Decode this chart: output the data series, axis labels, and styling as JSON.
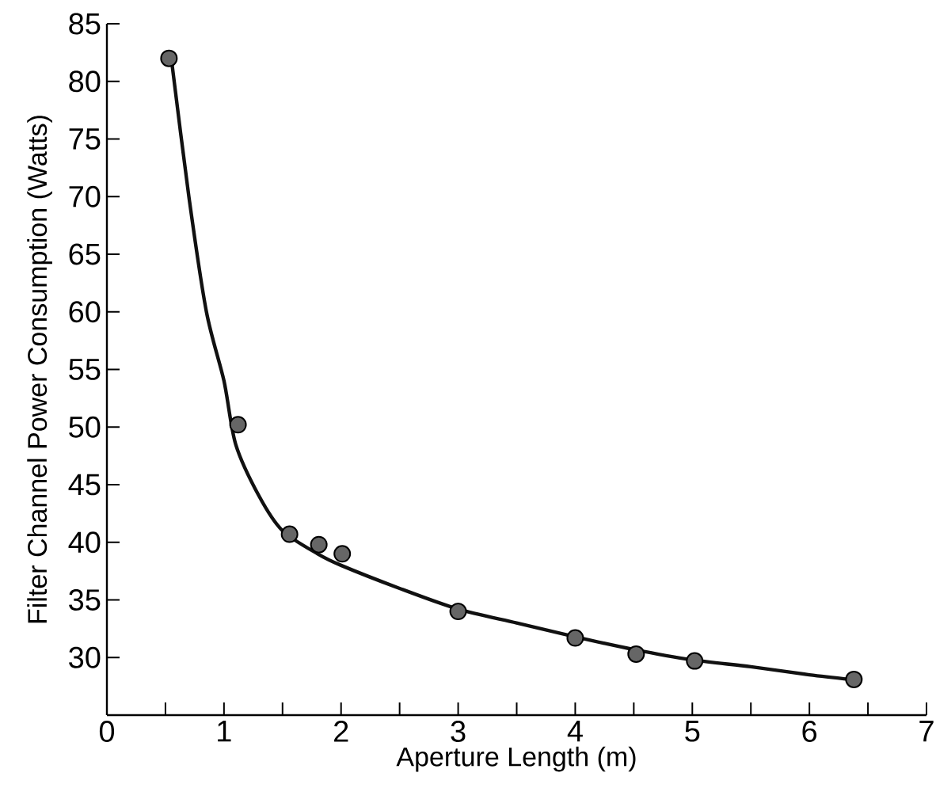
{
  "chart_data": {
    "type": "scatter",
    "xlabel": "Aperture Length (m)",
    "ylabel": "Filter Channel Power Consumption (Watts)",
    "xlim": [
      0,
      7
    ],
    "ylim": [
      25,
      85
    ],
    "xticks": [
      0,
      {
        "value": 0.5,
        "label": null
      },
      1,
      {
        "value": 1.5,
        "label": null
      },
      2,
      {
        "value": 2.5,
        "label": null
      },
      3,
      {
        "value": 3.5,
        "label": null
      },
      4,
      {
        "value": 4.5,
        "label": null
      },
      5,
      {
        "value": 5.5,
        "label": null
      },
      6,
      {
        "value": 6.5,
        "label": null
      },
      7
    ],
    "yticks": [
      30,
      35,
      40,
      45,
      50,
      55,
      60,
      65,
      70,
      75,
      80,
      85
    ],
    "grid": false,
    "series": [
      {
        "color": "#666666",
        "marker": "circle",
        "x": [
          0.53,
          1.12,
          1.56,
          1.81,
          2.01,
          3.0,
          4.0,
          4.52,
          5.02,
          6.38
        ],
        "values": [
          82.0,
          50.2,
          40.7,
          39.8,
          39.0,
          34.0,
          31.7,
          30.3,
          29.7,
          28.1
        ]
      },
      {
        "type": "line",
        "color": "#111111",
        "marker": "none",
        "line_style": "solid",
        "x": [
          0.55,
          0.7,
          0.85,
          1.0,
          1.1,
          1.3,
          1.5,
          1.8,
          2.0,
          2.5,
          3.0,
          3.5,
          4.0,
          4.5,
          5.0,
          5.5,
          6.0,
          6.35
        ],
        "values": [
          82,
          70,
          60,
          54,
          48.5,
          44,
          41,
          39,
          38,
          36,
          34.2,
          33,
          31.8,
          30.7,
          29.8,
          29.2,
          28.5,
          28.1
        ]
      }
    ]
  }
}
